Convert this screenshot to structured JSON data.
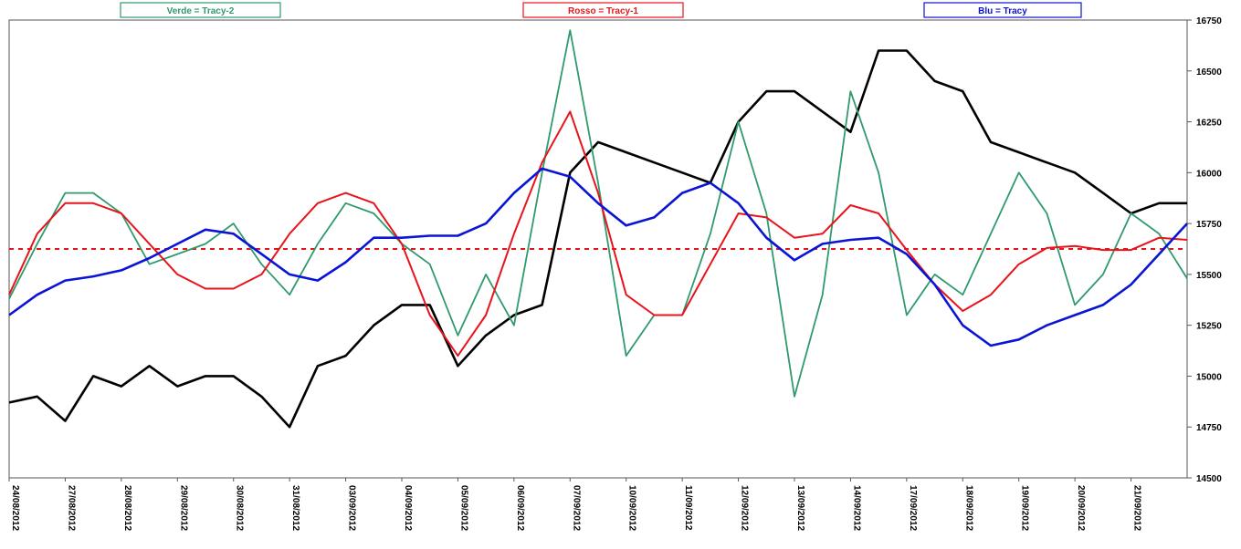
{
  "chart_data": {
    "type": "line",
    "x": [
      0,
      0.5,
      1,
      1.5,
      2,
      2.5,
      3,
      3.5,
      4,
      4.5,
      5,
      5.5,
      6,
      6.5,
      7,
      7.5,
      8,
      8.5,
      9,
      9.5,
      10,
      10.5,
      11,
      11.5,
      12,
      12.5,
      13,
      13.5,
      14,
      14.5,
      15,
      15.5,
      16,
      16.5,
      17,
      17.5,
      18,
      18.5,
      19,
      19.5,
      20,
      20.5,
      21
    ],
    "series": [
      {
        "name": "Verde = Tracy-2",
        "color": "#2f9a6c",
        "width": 1.8,
        "values": [
          15380,
          15650,
          15900,
          15900,
          15800,
          15550,
          15600,
          15650,
          15750,
          15550,
          15400,
          15650,
          15850,
          15800,
          15650,
          15550,
          15200,
          15500,
          15250,
          16000,
          16700,
          15950,
          15100,
          15300,
          15300,
          15700,
          16250,
          15800,
          14900,
          15400,
          16400,
          16000,
          15300,
          15500,
          15400,
          15700,
          16000,
          15800,
          15350,
          15500,
          15800,
          15700,
          15480
        ]
      },
      {
        "name": "Rosso = Tracy-1",
        "color": "#e8141b",
        "width": 2,
        "values": [
          15400,
          15700,
          15850,
          15850,
          15800,
          15650,
          15500,
          15430,
          15430,
          15500,
          15700,
          15850,
          15900,
          15850,
          15650,
          15300,
          15100,
          15300,
          15700,
          16050,
          16300,
          15900,
          15400,
          15300,
          15300,
          15550,
          15800,
          15780,
          15680,
          15700,
          15840,
          15800,
          15620,
          15450,
          15320,
          15400,
          15550,
          15630,
          15640,
          15620,
          15620,
          15680,
          15670
        ]
      },
      {
        "name": "Blu = Tracy",
        "color": "#0a14d4",
        "width": 2.6,
        "values": [
          15300,
          15400,
          15470,
          15490,
          15520,
          15580,
          15650,
          15720,
          15700,
          15600,
          15500,
          15470,
          15560,
          15680,
          15680,
          15690,
          15690,
          15750,
          15900,
          16020,
          15980,
          15850,
          15740,
          15780,
          15900,
          15950,
          15850,
          15680,
          15570,
          15650,
          15670,
          15680,
          15600,
          15450,
          15250,
          15150,
          15180,
          15250,
          15300,
          15350,
          15450,
          15600,
          15750
        ]
      },
      {
        "color": "#000000",
        "width": 2.6,
        "values": [
          14870,
          14900,
          14780,
          15000,
          14950,
          15050,
          14950,
          15000,
          15000,
          14900,
          14750,
          15050,
          15100,
          15250,
          15350,
          15350,
          15050,
          15200,
          15300,
          15350,
          16000,
          16150,
          16100,
          16050,
          16000,
          15950,
          16250,
          16400,
          16400,
          16300,
          16200,
          16600,
          16600,
          16450,
          16400,
          16150,
          16100,
          16050,
          16000,
          15900,
          15800,
          15850,
          15850
        ]
      }
    ],
    "reference_line": {
      "value": 15625,
      "color": "#e8141b"
    },
    "xlim": [
      0,
      21
    ],
    "xticks": [
      {
        "value": 0,
        "label": "24/08/2012"
      },
      {
        "value": 1,
        "label": "27/08/2012"
      },
      {
        "value": 2,
        "label": "28/08/2012"
      },
      {
        "value": 3,
        "label": "29/08/2012"
      },
      {
        "value": 4,
        "label": "30/08/2012"
      },
      {
        "value": 5,
        "label": "31/08/2012"
      },
      {
        "value": 6,
        "label": "03/09/2012"
      },
      {
        "value": 7,
        "label": "04/09/2012"
      },
      {
        "value": 8,
        "label": "05/09/2012"
      },
      {
        "value": 9,
        "label": "06/09/2012"
      },
      {
        "value": 10,
        "label": "07/09/2012"
      },
      {
        "value": 11,
        "label": "10/09/2012"
      },
      {
        "value": 12,
        "label": "11/09/2012"
      },
      {
        "value": 13,
        "label": "12/09/2012"
      },
      {
        "value": 14,
        "label": "13/09/2012"
      },
      {
        "value": 15,
        "label": "14/09/2012"
      },
      {
        "value": 16,
        "label": "17/09/2012"
      },
      {
        "value": 17,
        "label": "18/09/2012"
      },
      {
        "value": 18,
        "label": "19/09/2012"
      },
      {
        "value": 19,
        "label": "20/09/2012"
      },
      {
        "value": 20,
        "label": "21/09/2012"
      }
    ],
    "ylim": [
      14500,
      16750
    ],
    "yticks": [
      14500,
      14750,
      15000,
      15250,
      15500,
      15750,
      16000,
      16250,
      16500,
      16750
    ],
    "grid": false
  }
}
